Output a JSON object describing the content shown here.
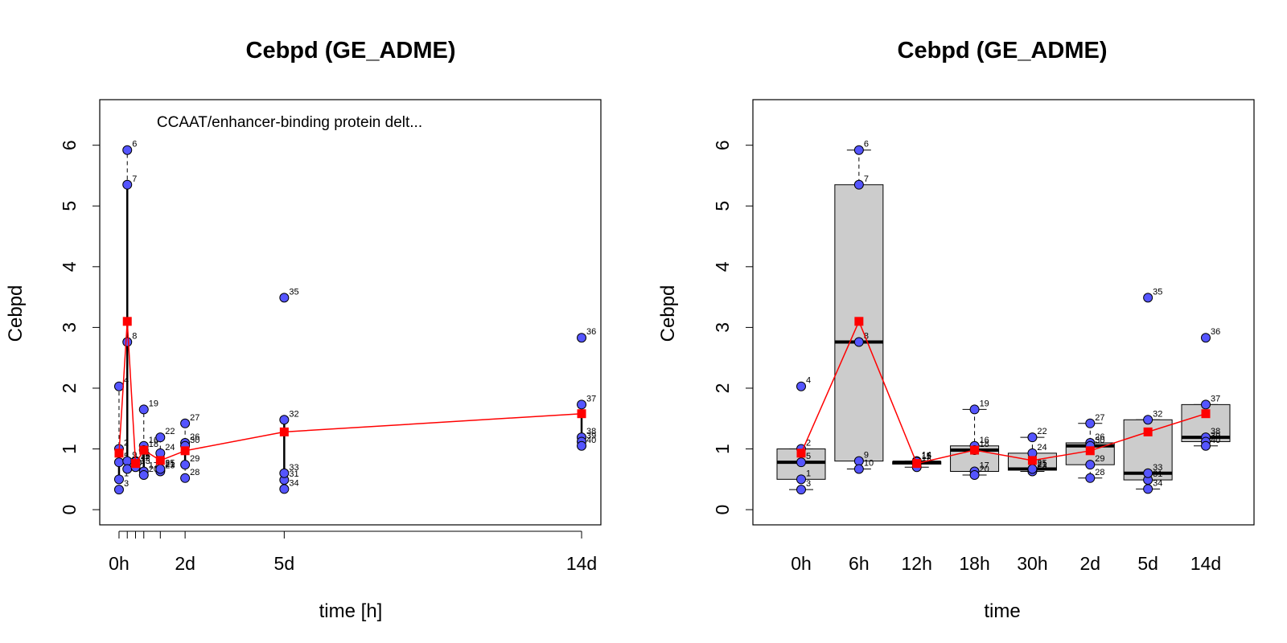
{
  "chart_data": [
    {
      "type": "scatter",
      "title": "Cebpd (GE_ADME)",
      "annotation": "CCAAT/enhancer-binding protein delt...",
      "xlabel": "time [h]",
      "ylabel": "Cebpd",
      "x_ticks": [
        0,
        6,
        12,
        18,
        30,
        48,
        120,
        336
      ],
      "x_tick_labels": [
        "0h",
        "",
        "",
        "",
        "",
        "2d",
        "5d",
        "14d"
      ],
      "xlim": [
        -14,
        350
      ],
      "ylim": [
        -0.25,
        6.75
      ],
      "y_ticks": [
        0,
        1,
        2,
        3,
        4,
        5,
        6
      ],
      "grid": false,
      "series": [
        {
          "kind": "samples",
          "color": "#5555ff",
          "points": [
            {
              "label": "1",
              "x": 0,
              "y": 0.5
            },
            {
              "label": "2",
              "x": 0,
              "y": 1.0
            },
            {
              "label": "3",
              "x": 0,
              "y": 0.33
            },
            {
              "label": "4",
              "x": 0,
              "y": 2.03
            },
            {
              "label": "5",
              "x": 0,
              "y": 0.78
            },
            {
              "label": "6",
              "x": 6,
              "y": 5.92
            },
            {
              "label": "7",
              "x": 6,
              "y": 5.35
            },
            {
              "label": "8",
              "x": 6,
              "y": 2.76
            },
            {
              "label": "9",
              "x": 6,
              "y": 0.8
            },
            {
              "label": "10",
              "x": 6,
              "y": 0.67
            },
            {
              "label": "11",
              "x": 12,
              "y": 0.78
            },
            {
              "label": "12",
              "x": 12,
              "y": 0.75
            },
            {
              "label": "13",
              "x": 12,
              "y": 0.7
            },
            {
              "label": "14",
              "x": 12,
              "y": 0.8
            },
            {
              "label": "15",
              "x": 12,
              "y": 0.79
            },
            {
              "label": "16",
              "x": 18,
              "y": 1.05
            },
            {
              "label": "17",
              "x": 18,
              "y": 0.63
            },
            {
              "label": "18",
              "x": 18,
              "y": 0.98
            },
            {
              "label": "19",
              "x": 18,
              "y": 1.65
            },
            {
              "label": "20",
              "x": 18,
              "y": 0.57
            },
            {
              "label": "21",
              "x": 30,
              "y": 0.65
            },
            {
              "label": "22",
              "x": 30,
              "y": 1.19
            },
            {
              "label": "23",
              "x": 30,
              "y": 0.63
            },
            {
              "label": "24",
              "x": 30,
              "y": 0.93
            },
            {
              "label": "25",
              "x": 30,
              "y": 0.67
            },
            {
              "label": "26",
              "x": 48,
              "y": 1.1
            },
            {
              "label": "27",
              "x": 48,
              "y": 1.42
            },
            {
              "label": "28",
              "x": 48,
              "y": 0.52
            },
            {
              "label": "29",
              "x": 48,
              "y": 0.74
            },
            {
              "label": "30",
              "x": 48,
              "y": 1.05
            },
            {
              "label": "31",
              "x": 120,
              "y": 0.49
            },
            {
              "label": "32",
              "x": 120,
              "y": 1.48
            },
            {
              "label": "33",
              "x": 120,
              "y": 0.6
            },
            {
              "label": "34",
              "x": 120,
              "y": 0.34
            },
            {
              "label": "35",
              "x": 120,
              "y": 3.49
            },
            {
              "label": "36",
              "x": 336,
              "y": 2.83
            },
            {
              "label": "37",
              "x": 336,
              "y": 1.73
            },
            {
              "label": "38",
              "x": 336,
              "y": 1.19
            },
            {
              "label": "39",
              "x": 336,
              "y": 1.12
            },
            {
              "label": "40",
              "x": 336,
              "y": 1.05
            }
          ]
        },
        {
          "kind": "mean",
          "color": "#ff0000",
          "x": [
            0,
            6,
            12,
            18,
            30,
            48,
            120,
            336
          ],
          "y": [
            0.93,
            3.1,
            0.76,
            0.98,
            0.81,
            0.97,
            1.28,
            1.58
          ]
        }
      ],
      "ranges": [
        {
          "x": 0,
          "min": 0.33,
          "max": 2.03
        },
        {
          "x": 6,
          "min": 0.67,
          "max": 5.92
        },
        {
          "x": 12,
          "min": 0.7,
          "max": 0.8
        },
        {
          "x": 18,
          "min": 0.57,
          "max": 1.65
        },
        {
          "x": 30,
          "min": 0.63,
          "max": 1.19
        },
        {
          "x": 48,
          "min": 0.52,
          "max": 1.42
        },
        {
          "x": 120,
          "min": 0.34,
          "max": 1.48
        },
        {
          "x": 336,
          "min": 1.05,
          "max": 1.73
        }
      ]
    },
    {
      "type": "box",
      "title": "Cebpd (GE_ADME)",
      "xlabel": "time",
      "ylabel": "Cebpd",
      "categories": [
        "0h",
        "6h",
        "12h",
        "18h",
        "30h",
        "2d",
        "5d",
        "14d"
      ],
      "ylim": [
        -0.25,
        6.75
      ],
      "y_ticks": [
        0,
        1,
        2,
        3,
        4,
        5,
        6
      ],
      "grid": false,
      "boxes": [
        {
          "category": "0h",
          "whisker_low": 0.33,
          "q1": 0.5,
          "median": 0.78,
          "q3": 1.0,
          "whisker_high": 1.0,
          "outliers": [
            2.03
          ]
        },
        {
          "category": "6h",
          "whisker_low": 0.67,
          "q1": 0.8,
          "median": 2.76,
          "q3": 5.35,
          "whisker_high": 5.92,
          "outliers": []
        },
        {
          "category": "12h",
          "whisker_low": 0.7,
          "q1": 0.75,
          "median": 0.78,
          "q3": 0.79,
          "whisker_high": 0.8,
          "outliers": []
        },
        {
          "category": "18h",
          "whisker_low": 0.57,
          "q1": 0.63,
          "median": 0.98,
          "q3": 1.05,
          "whisker_high": 1.65,
          "outliers": []
        },
        {
          "category": "30h",
          "whisker_low": 0.63,
          "q1": 0.65,
          "median": 0.67,
          "q3": 0.93,
          "whisker_high": 1.19,
          "outliers": []
        },
        {
          "category": "2d",
          "whisker_low": 0.52,
          "q1": 0.74,
          "median": 1.05,
          "q3": 1.1,
          "whisker_high": 1.42,
          "outliers": []
        },
        {
          "category": "5d",
          "whisker_low": 0.34,
          "q1": 0.49,
          "median": 0.6,
          "q3": 1.48,
          "whisker_high": 1.48,
          "outliers": [
            3.49
          ]
        },
        {
          "category": "14d",
          "whisker_low": 1.05,
          "q1": 1.12,
          "median": 1.19,
          "q3": 1.73,
          "whisker_high": 1.73,
          "outliers": [
            2.83
          ]
        }
      ],
      "mean_series": {
        "color": "#ff0000",
        "values": [
          0.93,
          3.1,
          0.76,
          0.98,
          0.81,
          0.97,
          1.28,
          1.58
        ]
      },
      "colors": {
        "box_fill": "#cccccc",
        "points": "#5555ff",
        "mean": "#ff0000"
      }
    }
  ]
}
